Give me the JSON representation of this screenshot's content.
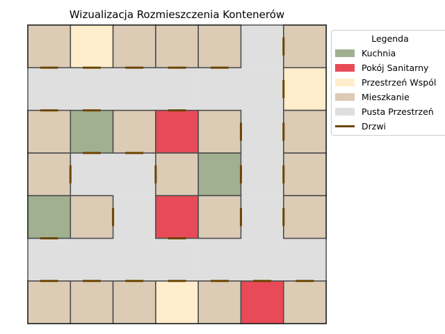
{
  "title": "Wizualizacja Rozmieszczenia Kontenerów",
  "colors": {
    "K": "#a0b090",
    "S": "#e84a57",
    "P": "#ffedcc",
    "M": "#dccbb5",
    "E": "#dfdfdf",
    "door": "#6b4500",
    "border": "#4d4d4d"
  },
  "legend": {
    "title": "Legenda",
    "items": [
      {
        "label": "Kuchnia",
        "key": "K",
        "kind": "patch"
      },
      {
        "label": "Pokój Sanitarny",
        "key": "S",
        "kind": "patch"
      },
      {
        "label": "Przestrzeń Wspól",
        "key": "P",
        "kind": "patch"
      },
      {
        "label": "Mieszkanie",
        "key": "M",
        "kind": "patch"
      },
      {
        "label": "Pusta Przestrzeń",
        "key": "E",
        "kind": "patch"
      },
      {
        "label": "Drzwi",
        "key": "door",
        "kind": "line"
      }
    ]
  },
  "grid": {
    "cols": 7,
    "rows": 7,
    "layout": [
      "MPMMMEM",
      "EEEEEEP",
      "MKMSMEM",
      "MEEMKEM",
      "KMESMEM",
      "EEEEEEE",
      "MMMPMSM"
    ],
    "doors": [
      {
        "row": 0,
        "col": 0,
        "side": "bottom"
      },
      {
        "row": 0,
        "col": 1,
        "side": "bottom"
      },
      {
        "row": 0,
        "col": 2,
        "side": "bottom"
      },
      {
        "row": 0,
        "col": 3,
        "side": "bottom"
      },
      {
        "row": 0,
        "col": 4,
        "side": "bottom"
      },
      {
        "row": 0,
        "col": 6,
        "side": "left"
      },
      {
        "row": 1,
        "col": 6,
        "side": "left"
      },
      {
        "row": 2,
        "col": 0,
        "side": "top"
      },
      {
        "row": 2,
        "col": 1,
        "side": "top"
      },
      {
        "row": 2,
        "col": 3,
        "side": "top"
      },
      {
        "row": 2,
        "col": 2,
        "side": "bottom"
      },
      {
        "row": 2,
        "col": 1,
        "side": "bottom"
      },
      {
        "row": 2,
        "col": 4,
        "side": "right"
      },
      {
        "row": 2,
        "col": 6,
        "side": "left"
      },
      {
        "row": 3,
        "col": 0,
        "side": "right"
      },
      {
        "row": 3,
        "col": 3,
        "side": "left"
      },
      {
        "row": 3,
        "col": 4,
        "side": "right"
      },
      {
        "row": 3,
        "col": 6,
        "side": "left"
      },
      {
        "row": 4,
        "col": 1,
        "side": "right"
      },
      {
        "row": 4,
        "col": 4,
        "side": "right"
      },
      {
        "row": 4,
        "col": 6,
        "side": "left"
      },
      {
        "row": 4,
        "col": 0,
        "side": "bottom"
      },
      {
        "row": 4,
        "col": 3,
        "side": "bottom"
      },
      {
        "row": 6,
        "col": 0,
        "side": "top"
      },
      {
        "row": 6,
        "col": 1,
        "side": "top"
      },
      {
        "row": 6,
        "col": 2,
        "side": "top"
      },
      {
        "row": 6,
        "col": 3,
        "side": "top"
      },
      {
        "row": 6,
        "col": 4,
        "side": "top"
      },
      {
        "row": 6,
        "col": 5,
        "side": "top"
      },
      {
        "row": 6,
        "col": 6,
        "side": "top"
      }
    ]
  }
}
